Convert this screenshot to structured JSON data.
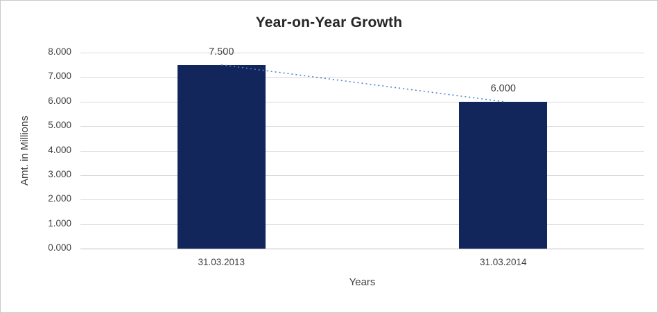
{
  "chart_data": {
    "type": "bar",
    "title": "Year-on-Year Growth",
    "categories": [
      "31.03.2013",
      "31.03.2014"
    ],
    "values": [
      7500,
      6000
    ],
    "data_labels": [
      "7.500",
      "6.000"
    ],
    "xlabel": "Years",
    "ylabel": "Amt. in Millions",
    "ylim": [
      0,
      8000
    ],
    "ytick_step": 1000,
    "ytick_labels": [
      "0.000",
      "1.000",
      "2.000",
      "3.000",
      "4.000",
      "5.000",
      "6.000",
      "7.000",
      "8.000"
    ],
    "grid": "horizontal",
    "legend": "none",
    "bar_color": "#12265C",
    "trendline": {
      "style": "dotted",
      "color": "#4A86C6"
    }
  }
}
